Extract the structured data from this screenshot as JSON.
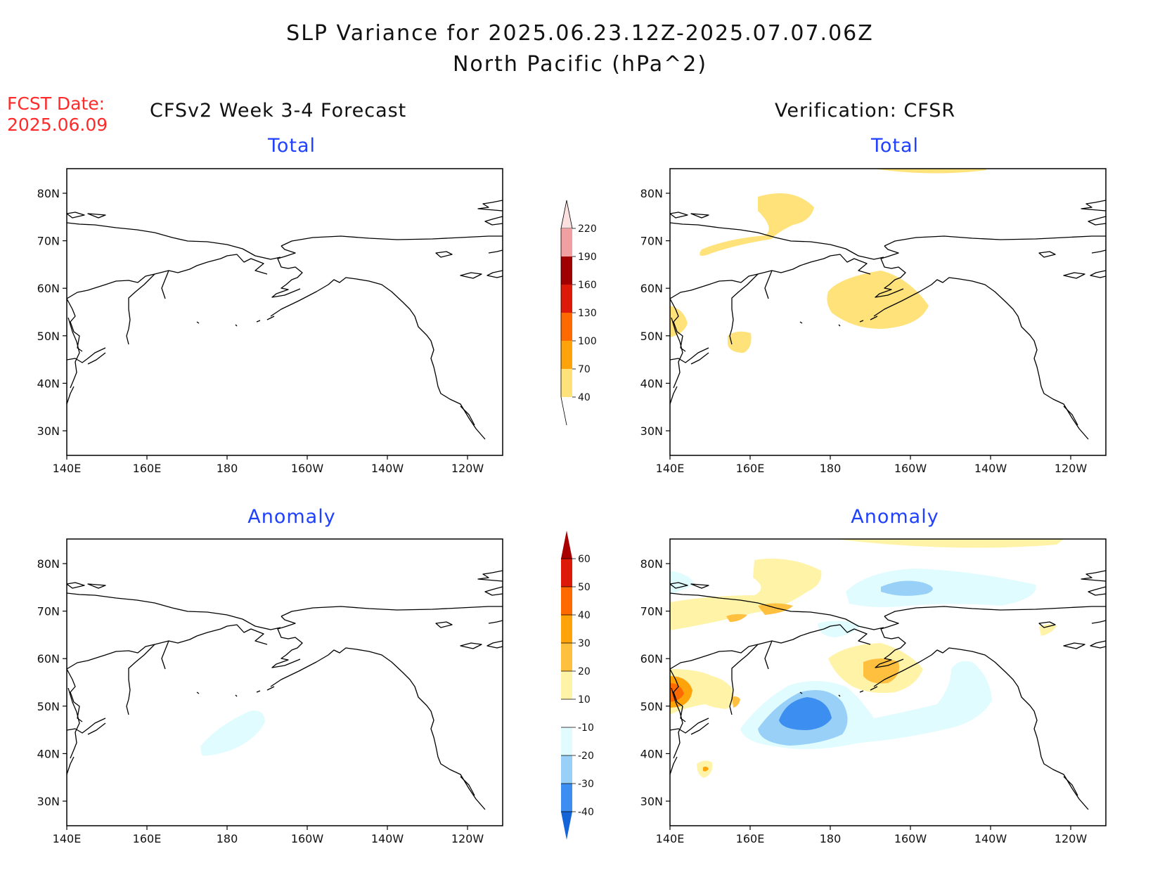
{
  "title": {
    "line1": "SLP Variance for 2025.06.23.12Z-2025.07.07.06Z",
    "line2": "North Pacific (hPa^2)"
  },
  "fcst_date": {
    "label": "FCST Date:",
    "value": "2025.06.09"
  },
  "columns": {
    "left_header": "CFSv2 Week 3-4 Forecast",
    "right_header": "Verification: CFSR"
  },
  "panels": [
    {
      "id": "forecast-total",
      "subtitle": "Total"
    },
    {
      "id": "verification-total",
      "subtitle": "Total"
    },
    {
      "id": "forecast-anomaly",
      "subtitle": "Anomaly"
    },
    {
      "id": "verification-anomaly",
      "subtitle": "Anomaly"
    }
  ],
  "axes": {
    "x_ticks": [
      "140E",
      "160E",
      "180",
      "160W",
      "140W",
      "120W"
    ],
    "y_ticks": [
      "80N",
      "70N",
      "60N",
      "50N",
      "40N",
      "30N"
    ]
  },
  "colorbar_total": {
    "labels": [
      "220",
      "190",
      "160",
      "130",
      "100",
      "70",
      "40"
    ],
    "colors": [
      "#fce0e0",
      "#f0a0a0",
      "#a00000",
      "#dd1a0a",
      "#ff6a00",
      "#ffa30a",
      "#ffe27a"
    ]
  },
  "colorbar_anomaly": {
    "labels": [
      "60",
      "50",
      "40",
      "30",
      "20",
      "10",
      "-10",
      "-20",
      "-30",
      "-40"
    ],
    "colors": [
      "#a80000",
      "#dd1a0a",
      "#ff6a00",
      "#ffa30a",
      "#ffc040",
      "#fff3a8",
      "#ffffff",
      "#e0fcff",
      "#98d0f8",
      "#3c8ef0",
      "#1565d8"
    ]
  }
}
